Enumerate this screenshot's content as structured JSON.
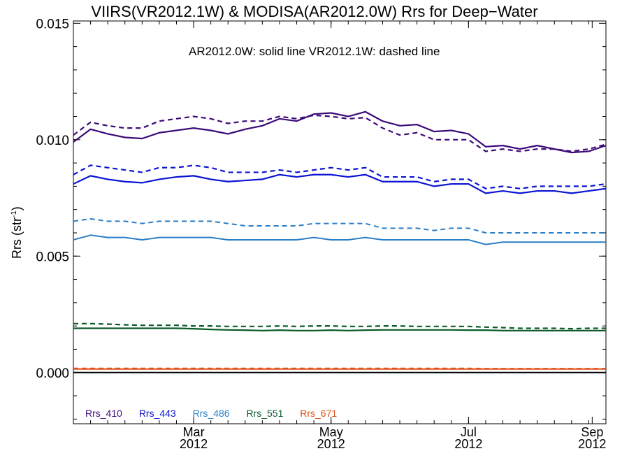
{
  "chart_data": {
    "type": "line",
    "title": "VIIRS(VR2012.1W) & MODISA(AR2012.0W)  Rrs for Deep−Water",
    "annotation": "AR2012.0W: solid line   VR2012.1W: dashed line",
    "ylabel": "Rrs (str",
    "ylabel_sup": "-1",
    "ylabel_close": ")",
    "ylim": [
      -0.0022,
      0.0151
    ],
    "xlim": [
      0,
      31
    ],
    "yticks": [
      {
        "value": 0.0,
        "label": "0.000"
      },
      {
        "value": 0.005,
        "label": "0.005"
      },
      {
        "value": 0.01,
        "label": "0.010"
      },
      {
        "value": 0.015,
        "label": "0.015"
      }
    ],
    "xticks": [
      {
        "x": 7,
        "month": "Mar",
        "year": "2012"
      },
      {
        "x": 15,
        "month": "May",
        "year": "2012"
      },
      {
        "x": 23,
        "month": "Jul",
        "year": "2012"
      },
      {
        "x": 30.2,
        "month": "Sep",
        "year": "2012"
      }
    ],
    "series": [
      {
        "name": "Rrs_410",
        "color": "#3c0a78",
        "style": "solid",
        "width": 2.2,
        "values": [
          0.0099,
          0.01045,
          0.01025,
          0.0101,
          0.01005,
          0.0103,
          0.0104,
          0.0105,
          0.0104,
          0.01025,
          0.01045,
          0.0106,
          0.0109,
          0.0108,
          0.0111,
          0.01115,
          0.011,
          0.0112,
          0.0108,
          0.0106,
          0.01065,
          0.01035,
          0.0104,
          0.01025,
          0.0097,
          0.00975,
          0.0096,
          0.00975,
          0.0096,
          0.00945,
          0.0095,
          0.00975
        ]
      },
      {
        "name": "Rrs_410",
        "color": "#3c0a78",
        "style": "dashed",
        "width": 2.2,
        "values": [
          0.0102,
          0.01075,
          0.0106,
          0.0105,
          0.0105,
          0.0108,
          0.0109,
          0.011,
          0.0109,
          0.0107,
          0.0108,
          0.0108,
          0.011,
          0.0109,
          0.01105,
          0.011,
          0.0109,
          0.01095,
          0.0105,
          0.0102,
          0.0103,
          0.01,
          0.01,
          0.01,
          0.0095,
          0.0096,
          0.0095,
          0.0096,
          0.0096,
          0.0095,
          0.0096,
          0.0098
        ]
      },
      {
        "name": "Rrs_443",
        "color": "#0a14d2",
        "style": "solid",
        "width": 2.2,
        "values": [
          0.0081,
          0.00845,
          0.0083,
          0.0082,
          0.00815,
          0.0083,
          0.0084,
          0.00845,
          0.0083,
          0.0082,
          0.00825,
          0.0083,
          0.0085,
          0.0084,
          0.0085,
          0.0085,
          0.0084,
          0.0085,
          0.0082,
          0.0082,
          0.0082,
          0.008,
          0.0081,
          0.0081,
          0.0077,
          0.0078,
          0.0077,
          0.0078,
          0.0078,
          0.0077,
          0.0078,
          0.0079
        ]
      },
      {
        "name": "Rrs_443",
        "color": "#0a14d2",
        "style": "dashed",
        "width": 2.2,
        "values": [
          0.0085,
          0.0089,
          0.0088,
          0.0087,
          0.0086,
          0.0088,
          0.0088,
          0.0089,
          0.0088,
          0.0086,
          0.0086,
          0.0086,
          0.0087,
          0.0086,
          0.0087,
          0.0088,
          0.0087,
          0.0088,
          0.0084,
          0.0084,
          0.0084,
          0.0082,
          0.0083,
          0.0083,
          0.0079,
          0.008,
          0.0079,
          0.008,
          0.008,
          0.008,
          0.008,
          0.0081
        ]
      },
      {
        "name": "Rrs_486",
        "color": "#2a7ec6",
        "style": "solid",
        "width": 2.0,
        "values": [
          0.0057,
          0.0059,
          0.0058,
          0.0058,
          0.0057,
          0.0058,
          0.0058,
          0.0058,
          0.0058,
          0.0057,
          0.0057,
          0.0057,
          0.0057,
          0.0057,
          0.0058,
          0.0057,
          0.0057,
          0.0058,
          0.0057,
          0.0057,
          0.0057,
          0.0057,
          0.0057,
          0.0057,
          0.0055,
          0.0056,
          0.0056,
          0.0056,
          0.0056,
          0.0056,
          0.0056,
          0.0056
        ]
      },
      {
        "name": "Rrs_486",
        "color": "#2a7ec6",
        "style": "dashed",
        "width": 2.0,
        "values": [
          0.0065,
          0.0066,
          0.0065,
          0.0065,
          0.0064,
          0.0065,
          0.0065,
          0.0065,
          0.0065,
          0.0064,
          0.0063,
          0.0063,
          0.0063,
          0.0063,
          0.0064,
          0.0064,
          0.0064,
          0.0064,
          0.0062,
          0.0062,
          0.0062,
          0.0061,
          0.0062,
          0.0062,
          0.006,
          0.006,
          0.006,
          0.006,
          0.006,
          0.006,
          0.006,
          0.006
        ]
      },
      {
        "name": "Rrs_551",
        "color": "#0a5a28",
        "style": "solid",
        "width": 2.2,
        "values": [
          0.0019,
          0.0019,
          0.0019,
          0.0019,
          0.0019,
          0.0019,
          0.0019,
          0.00188,
          0.00185,
          0.00183,
          0.00182,
          0.0018,
          0.00182,
          0.0018,
          0.0018,
          0.00182,
          0.0018,
          0.00182,
          0.00183,
          0.00183,
          0.00183,
          0.00183,
          0.00183,
          0.00182,
          0.00182,
          0.0018,
          0.0018,
          0.0018,
          0.0018,
          0.0018,
          0.0018,
          0.0018
        ]
      },
      {
        "name": "Rrs_551",
        "color": "#0a5a28",
        "style": "dashed",
        "width": 2.2,
        "values": [
          0.0021,
          0.0021,
          0.00208,
          0.00205,
          0.00203,
          0.00203,
          0.00203,
          0.002,
          0.002,
          0.00198,
          0.00198,
          0.00198,
          0.002,
          0.00198,
          0.002,
          0.002,
          0.00198,
          0.00198,
          0.002,
          0.002,
          0.00198,
          0.00198,
          0.00198,
          0.00198,
          0.00195,
          0.00193,
          0.0019,
          0.0019,
          0.0019,
          0.00188,
          0.0019,
          0.0019
        ]
      },
      {
        "name": "Rrs_671",
        "color": "#e0501a",
        "style": "solid",
        "width": 2.0,
        "values": [
          0.00015,
          0.00015,
          0.00015,
          0.00015,
          0.00015,
          0.00015,
          0.00015,
          0.00015,
          0.00015,
          0.00015,
          0.00015,
          0.00015,
          0.00015,
          0.00015,
          0.00015,
          0.00015,
          0.00015,
          0.00015,
          0.00015,
          0.00015,
          0.00015,
          0.00015,
          0.00015,
          0.00015,
          0.00015,
          0.00015,
          0.00015,
          0.00015,
          0.00015,
          0.00015,
          0.00015,
          0.00015
        ]
      },
      {
        "name": "Rrs_671",
        "color": "#e0501a",
        "style": "dashed",
        "width": 2.0,
        "values": [
          0.00018,
          0.00018,
          0.00018,
          0.00018,
          0.00018,
          0.00018,
          0.00018,
          0.00018,
          0.00018,
          0.00018,
          0.00018,
          0.00018,
          0.00018,
          0.00018,
          0.00018,
          0.00018,
          0.00018,
          0.00018,
          0.00018,
          0.00018,
          0.00018,
          0.00018,
          0.00018,
          0.00018,
          0.00017,
          0.00017,
          0.00017,
          0.00017,
          0.00017,
          0.00017,
          0.00017,
          0.00017
        ]
      }
    ],
    "zero_line": {
      "value": 0.0,
      "color": "#000000"
    },
    "legend": [
      {
        "label": "Rrs_410",
        "color": "#3c0a78"
      },
      {
        "label": "Rrs_443",
        "color": "#0a14d2"
      },
      {
        "label": "Rrs_486",
        "color": "#2a7ec6"
      },
      {
        "label": "Rrs_551",
        "color": "#0a5a28"
      },
      {
        "label": "Rrs_671",
        "color": "#e0501a"
      }
    ],
    "legend_position": "bottom-left",
    "grid": false
  }
}
